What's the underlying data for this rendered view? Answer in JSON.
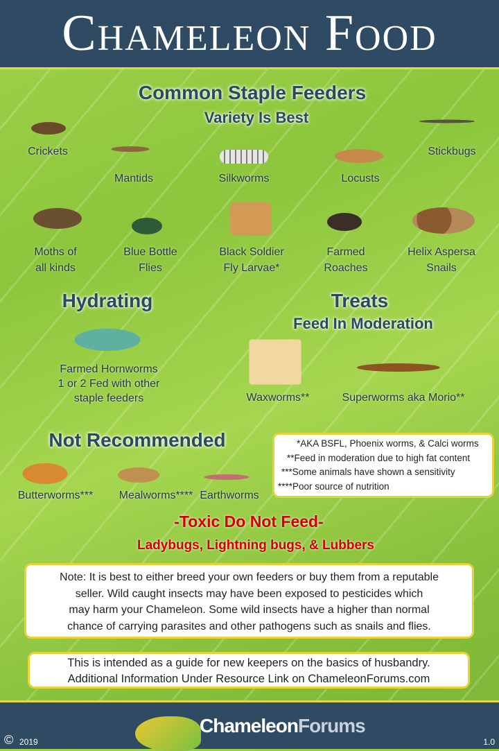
{
  "title": "Chameleon Food",
  "staple": {
    "heading": "Common Staple Feeders",
    "sub": "Variety Is Best",
    "items": [
      {
        "label": "Crickets"
      },
      {
        "label": "Mantids"
      },
      {
        "label": "Silkworms"
      },
      {
        "label": "Locusts"
      },
      {
        "label": "Stickbugs"
      },
      {
        "line1": "Moths of",
        "line2": "all kinds"
      },
      {
        "line1": "Blue Bottle",
        "line2": "Flies"
      },
      {
        "line1": "Black Soldier",
        "line2": "Fly Larvae*"
      },
      {
        "line1": "Farmed",
        "line2": "Roaches"
      },
      {
        "line1": "Helix Aspersa",
        "line2": "Snails"
      }
    ]
  },
  "hydrating": {
    "heading": "Hydrating",
    "lines": [
      "Farmed Hornworms",
      "1 or 2 Fed with other",
      "staple feeders"
    ]
  },
  "treats": {
    "heading": "Treats",
    "sub": "Feed In Moderation",
    "items": [
      "Waxworms**",
      "Superworms aka Morio**"
    ]
  },
  "not_recommended": {
    "heading": "Not Recommended",
    "items": [
      "Butterworms***",
      "Mealworms****",
      "Earthworms"
    ]
  },
  "footnotes": [
    "*AKA BSFL, Phoenix worms, & Calci worms",
    "**Feed in moderation due to high fat content",
    "***Some animals have shown a sensitivity",
    "****Poor source of nutrition"
  ],
  "toxic": {
    "heading": "-Toxic Do Not Feed-",
    "list": "Ladybugs, Lightning bugs, & Lubbers",
    "color": "#d40000"
  },
  "note": [
    "Note: It is best to either breed your own feeders or buy them from a reputable",
    "seller. Wild caught insects may have been exposed to pesticides which",
    "may harm your Chameleon. Some wild insects have a higher than normal",
    "chance of carrying parasites and other pathogens such as snails and flies."
  ],
  "guide": [
    "This is intended as a guide for new keepers on the basics of husbandry.",
    "Additional Information Under Resource Link on ChameleonForums.com"
  ],
  "footer": {
    "copyright": "©",
    "year": "2019",
    "logo_a": "Chameleon",
    "logo_b": "Forums",
    "version": "1.0"
  }
}
